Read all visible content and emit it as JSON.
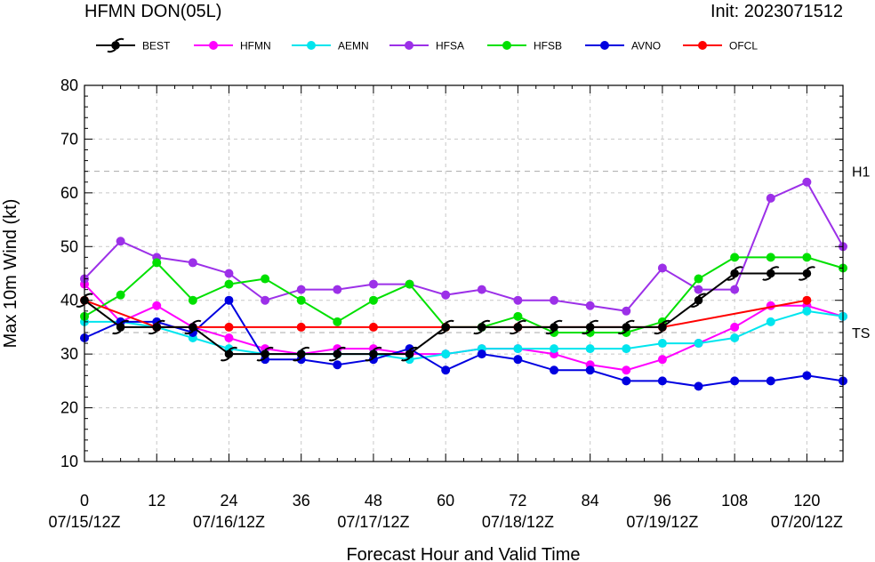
{
  "header": {
    "title": "HFMN DON(05L)",
    "init": "Init: 2023071512"
  },
  "chart_data": {
    "type": "line",
    "xlabel": "Forecast Hour and Valid Time",
    "ylabel": "Max 10m Wind (kt)",
    "xlim": [
      0,
      126
    ],
    "ylim": [
      10,
      80
    ],
    "x_ticks": [
      0,
      12,
      24,
      36,
      48,
      60,
      72,
      84,
      96,
      108,
      120
    ],
    "date_ticks": [
      {
        "hour": 0,
        "label": "07/15/12Z"
      },
      {
        "hour": 24,
        "label": "07/16/12Z"
      },
      {
        "hour": 48,
        "label": "07/17/12Z"
      },
      {
        "hour": 72,
        "label": "07/18/12Z"
      },
      {
        "hour": 96,
        "label": "07/19/12Z"
      },
      {
        "hour": 120,
        "label": "07/20/12Z"
      }
    ],
    "y_ticks": [
      10,
      20,
      30,
      40,
      50,
      60,
      70,
      80
    ],
    "grid": true,
    "legend_position": "top",
    "thresholds": [
      {
        "label": "H1",
        "value": 64
      },
      {
        "label": "TS",
        "value": 34
      }
    ],
    "series": [
      {
        "name": "BEST",
        "color": "#000000",
        "marker": "hurricane-symbol",
        "x": [
          0,
          6,
          12,
          18,
          24,
          30,
          36,
          42,
          48,
          54,
          60,
          66,
          72,
          78,
          84,
          90,
          96,
          102,
          108,
          114,
          120
        ],
        "values": [
          40,
          35,
          35,
          35,
          30,
          30,
          30,
          30,
          30,
          30,
          35,
          35,
          35,
          35,
          35,
          35,
          35,
          40,
          45,
          45,
          45
        ]
      },
      {
        "name": "HFMN",
        "color": "#ff00ff",
        "marker": "dot",
        "x": [
          0,
          6,
          12,
          18,
          24,
          30,
          36,
          42,
          48,
          54,
          60,
          66,
          72,
          78,
          84,
          90,
          96,
          102,
          108,
          114,
          120,
          126
        ],
        "values": [
          43,
          36,
          39,
          35,
          33,
          31,
          30,
          31,
          31,
          30,
          30,
          31,
          31,
          30,
          28,
          27,
          29,
          32,
          35,
          39,
          39,
          37
        ]
      },
      {
        "name": "AEMN",
        "color": "#00e5ee",
        "marker": "dot",
        "x": [
          0,
          6,
          12,
          18,
          24,
          30,
          36,
          42,
          48,
          54,
          60,
          66,
          72,
          78,
          84,
          90,
          96,
          102,
          108,
          114,
          120,
          126
        ],
        "values": [
          36,
          36,
          35,
          33,
          31,
          30,
          30,
          30,
          30,
          29,
          30,
          31,
          31,
          31,
          31,
          31,
          32,
          32,
          33,
          36,
          38,
          37
        ]
      },
      {
        "name": "HFSA",
        "color": "#9c30e8",
        "marker": "dot",
        "x": [
          0,
          6,
          12,
          18,
          24,
          30,
          36,
          42,
          48,
          54,
          60,
          66,
          72,
          78,
          84,
          90,
          96,
          102,
          108,
          114,
          120,
          126
        ],
        "values": [
          44,
          51,
          48,
          47,
          45,
          40,
          42,
          42,
          43,
          43,
          41,
          42,
          40,
          40,
          39,
          38,
          46,
          42,
          42,
          59,
          62,
          50
        ]
      },
      {
        "name": "HFSB",
        "color": "#00e000",
        "marker": "dot",
        "x": [
          0,
          6,
          12,
          18,
          24,
          30,
          36,
          42,
          48,
          54,
          60,
          66,
          72,
          78,
          84,
          90,
          96,
          102,
          108,
          114,
          120,
          126
        ],
        "values": [
          37,
          41,
          47,
          40,
          43,
          44,
          40,
          36,
          40,
          43,
          35,
          35,
          37,
          34,
          34,
          34,
          36,
          44,
          48,
          48,
          48,
          46
        ]
      },
      {
        "name": "AVNO",
        "color": "#0000e0",
        "marker": "dot",
        "x": [
          0,
          6,
          12,
          18,
          24,
          30,
          36,
          42,
          48,
          54,
          60,
          66,
          72,
          78,
          84,
          90,
          96,
          102,
          108,
          114,
          120,
          126
        ],
        "values": [
          33,
          36,
          36,
          34,
          40,
          29,
          29,
          28,
          29,
          31,
          27,
          30,
          29,
          27,
          27,
          25,
          25,
          24,
          25,
          25,
          26,
          25
        ]
      },
      {
        "name": "OFCL",
        "color": "#ff0000",
        "marker": "dot",
        "x": [
          0,
          12,
          24,
          36,
          48,
          60,
          72,
          96,
          120
        ],
        "values": [
          40,
          35,
          35,
          35,
          35,
          35,
          35,
          35,
          40
        ]
      }
    ]
  }
}
